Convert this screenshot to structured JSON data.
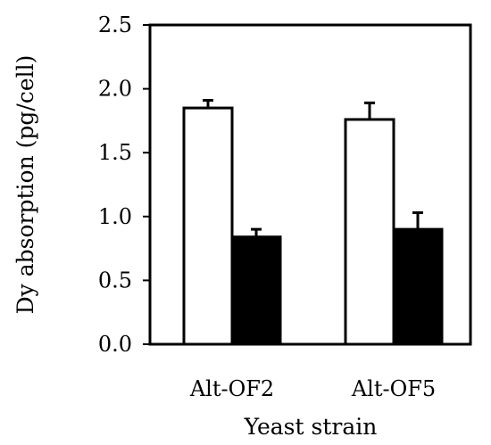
{
  "chart_data": {
    "type": "bar",
    "title": "",
    "xlabel": "Yeast strain",
    "ylabel": "Dy absorption (pg/cell)",
    "categories": [
      "Alt-OF2",
      "Alt-OF5"
    ],
    "ylim": [
      0,
      2.5
    ],
    "yticks": [
      "0.0",
      "0.5",
      "1.0",
      "1.5",
      "2.0",
      "2.5"
    ],
    "series": [
      {
        "fill": "#ffffff",
        "values": [
          1.85,
          1.76
        ],
        "errors": [
          0.06,
          0.13
        ]
      },
      {
        "fill": "#000000",
        "values": [
          0.84,
          0.9
        ],
        "errors": [
          0.06,
          0.13
        ]
      }
    ],
    "grid": false,
    "legend": "none"
  }
}
